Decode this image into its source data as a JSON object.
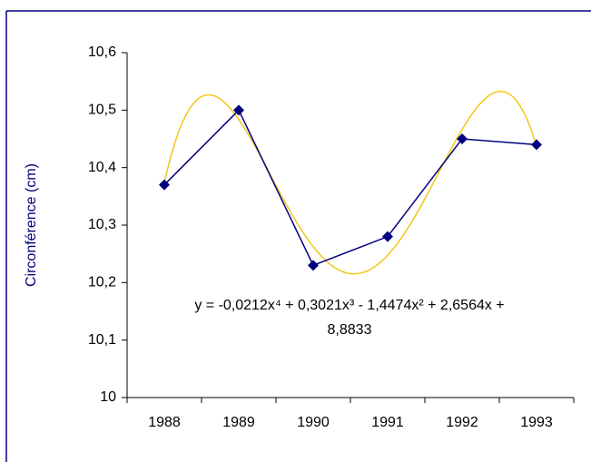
{
  "chart_data": {
    "type": "line",
    "y_label": "Circonférence (cm)",
    "categories": [
      "1988",
      "1989",
      "1990",
      "1991",
      "1992",
      "1993"
    ],
    "series": [
      {
        "color": "#000080",
        "values": [
          10.37,
          10.5,
          10.23,
          10.28,
          10.45,
          10.44
        ]
      }
    ],
    "trendline": {
      "type": "polynomial",
      "order": 4,
      "color": "#f5c518"
    },
    "annotation": [
      "y = -0,0212x⁴ + 0,3021x³ - 1,4474x² + 2,6564x +",
      "8,8833"
    ],
    "ylim": [
      10,
      10.6
    ],
    "yticks": [
      10,
      {
        "value": 10.1,
        "label": "10,1"
      },
      {
        "value": 10.2,
        "label": "10,2"
      },
      {
        "value": 10.3,
        "label": "10,3"
      },
      {
        "value": 10.4,
        "label": "10,4"
      },
      {
        "value": 10.5,
        "label": "10,5"
      },
      {
        "value": 10.6,
        "label": "10,6"
      }
    ]
  }
}
